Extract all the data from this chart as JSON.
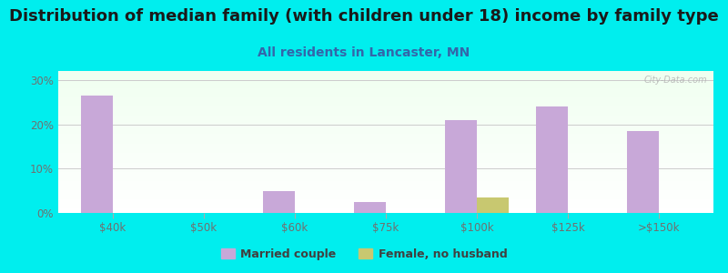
{
  "title": "Distribution of median family (with children under 18) income by family type",
  "subtitle": "All residents in Lancaster, MN",
  "background_color": "#00EEEE",
  "categories": [
    "$40k",
    "$50k",
    "$60k",
    "$75k",
    "$100k",
    "$125k",
    ">$150k"
  ],
  "married_couple": [
    26.5,
    0.0,
    5.0,
    2.5,
    21.0,
    24.0,
    18.5
  ],
  "female_no_husband": [
    0.0,
    0.0,
    0.0,
    0.0,
    3.5,
    0.0,
    0.0
  ],
  "married_color": "#c8a8d8",
  "female_color": "#c8c870",
  "bar_width": 0.35,
  "ylim": [
    0,
    32
  ],
  "yticks": [
    0,
    10,
    20,
    30
  ],
  "ytick_labels": [
    "0%",
    "10%",
    "20%",
    "30%"
  ],
  "title_fontsize": 13,
  "subtitle_fontsize": 10,
  "grid_color": "#cccccc",
  "legend_label_married": "Married couple",
  "legend_label_female": "Female, no husband",
  "watermark": "City-Data.com"
}
